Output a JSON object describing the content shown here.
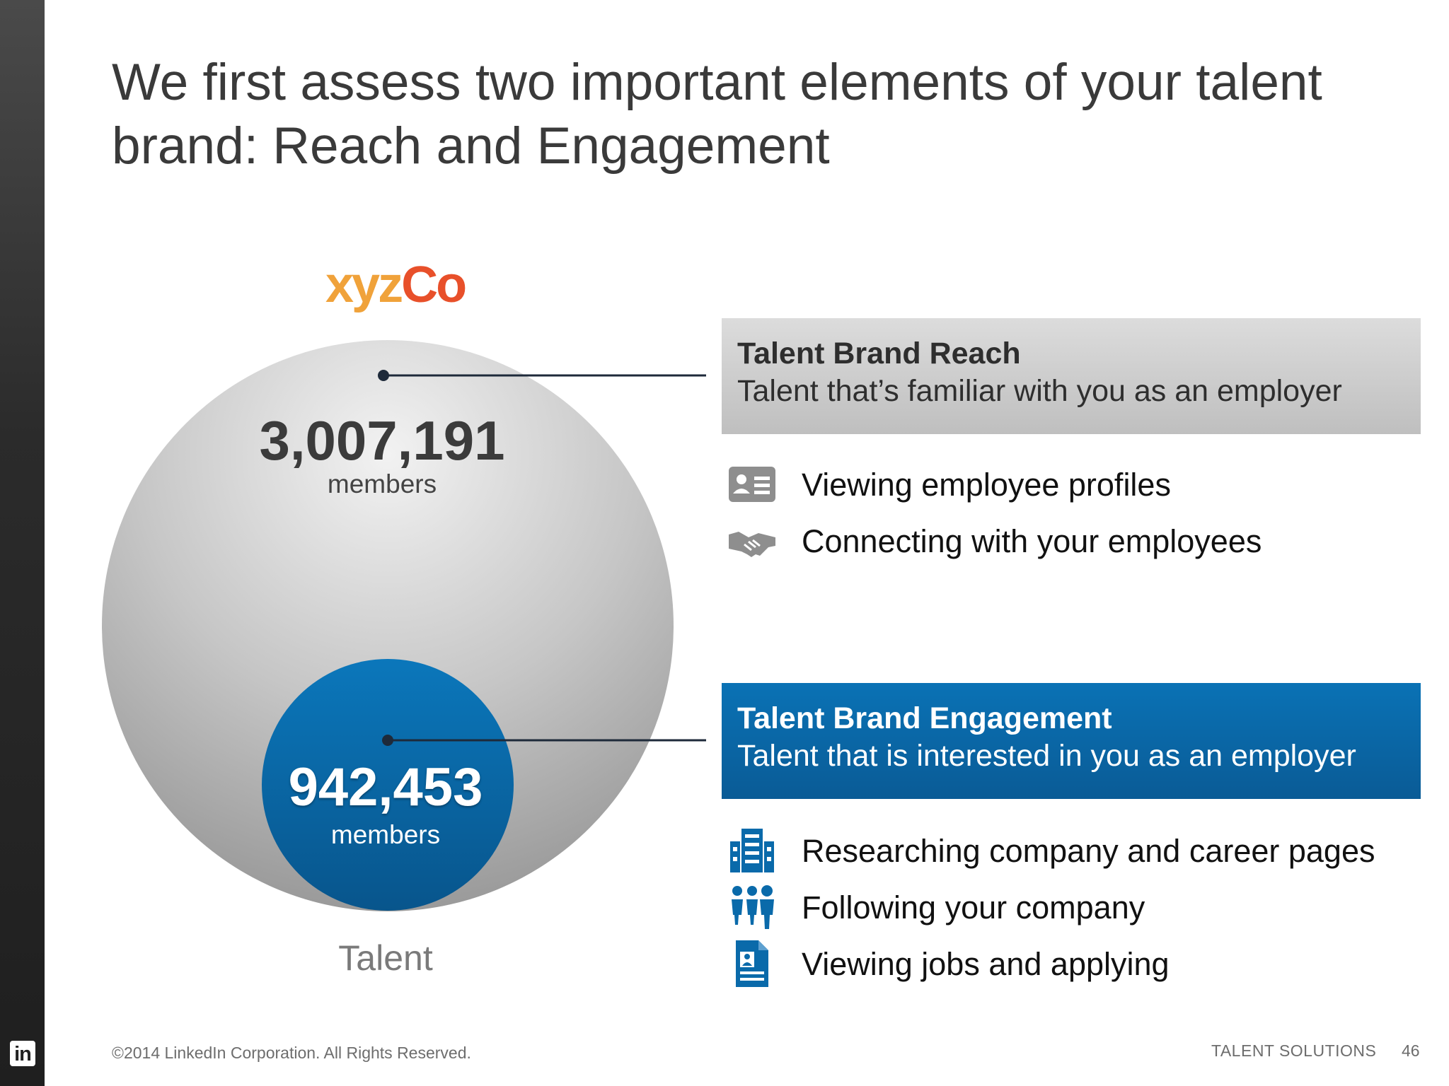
{
  "title": "We first assess two important elements of your talent brand: Reach and Engagement",
  "company_logo": {
    "part1": "xyz",
    "part2": "Co"
  },
  "reach_circle": {
    "value": "3,007,191",
    "unit": "members",
    "color": "#c8c8c8"
  },
  "engagement_circle": {
    "value": "942,453",
    "unit": "members",
    "color": "#0a6aaa"
  },
  "circle_label": "Talent",
  "reach_box": {
    "heading": "Talent Brand Reach",
    "subheading": "Talent that’s familiar with you as an employer",
    "color": "#cccccc"
  },
  "reach_items": [
    {
      "icon": "profile-card-icon",
      "label": "Viewing employee profiles"
    },
    {
      "icon": "handshake-icon",
      "label": "Connecting with your employees"
    }
  ],
  "engagement_box": {
    "heading": "Talent Brand Engagement",
    "subheading": "Talent that is interested in you as an employer",
    "color": "#0a67a8"
  },
  "engagement_items": [
    {
      "icon": "building-icon",
      "label": "Researching company and career pages"
    },
    {
      "icon": "people-group-icon",
      "label": "Following your company"
    },
    {
      "icon": "job-document-icon",
      "label": "Viewing jobs and applying"
    }
  ],
  "footer": {
    "copyright": "©2014 LinkedIn Corporation. All Rights Reserved.",
    "brand": "TALENT SOLUTIONS",
    "page_number": "46",
    "logo_text": "in"
  }
}
